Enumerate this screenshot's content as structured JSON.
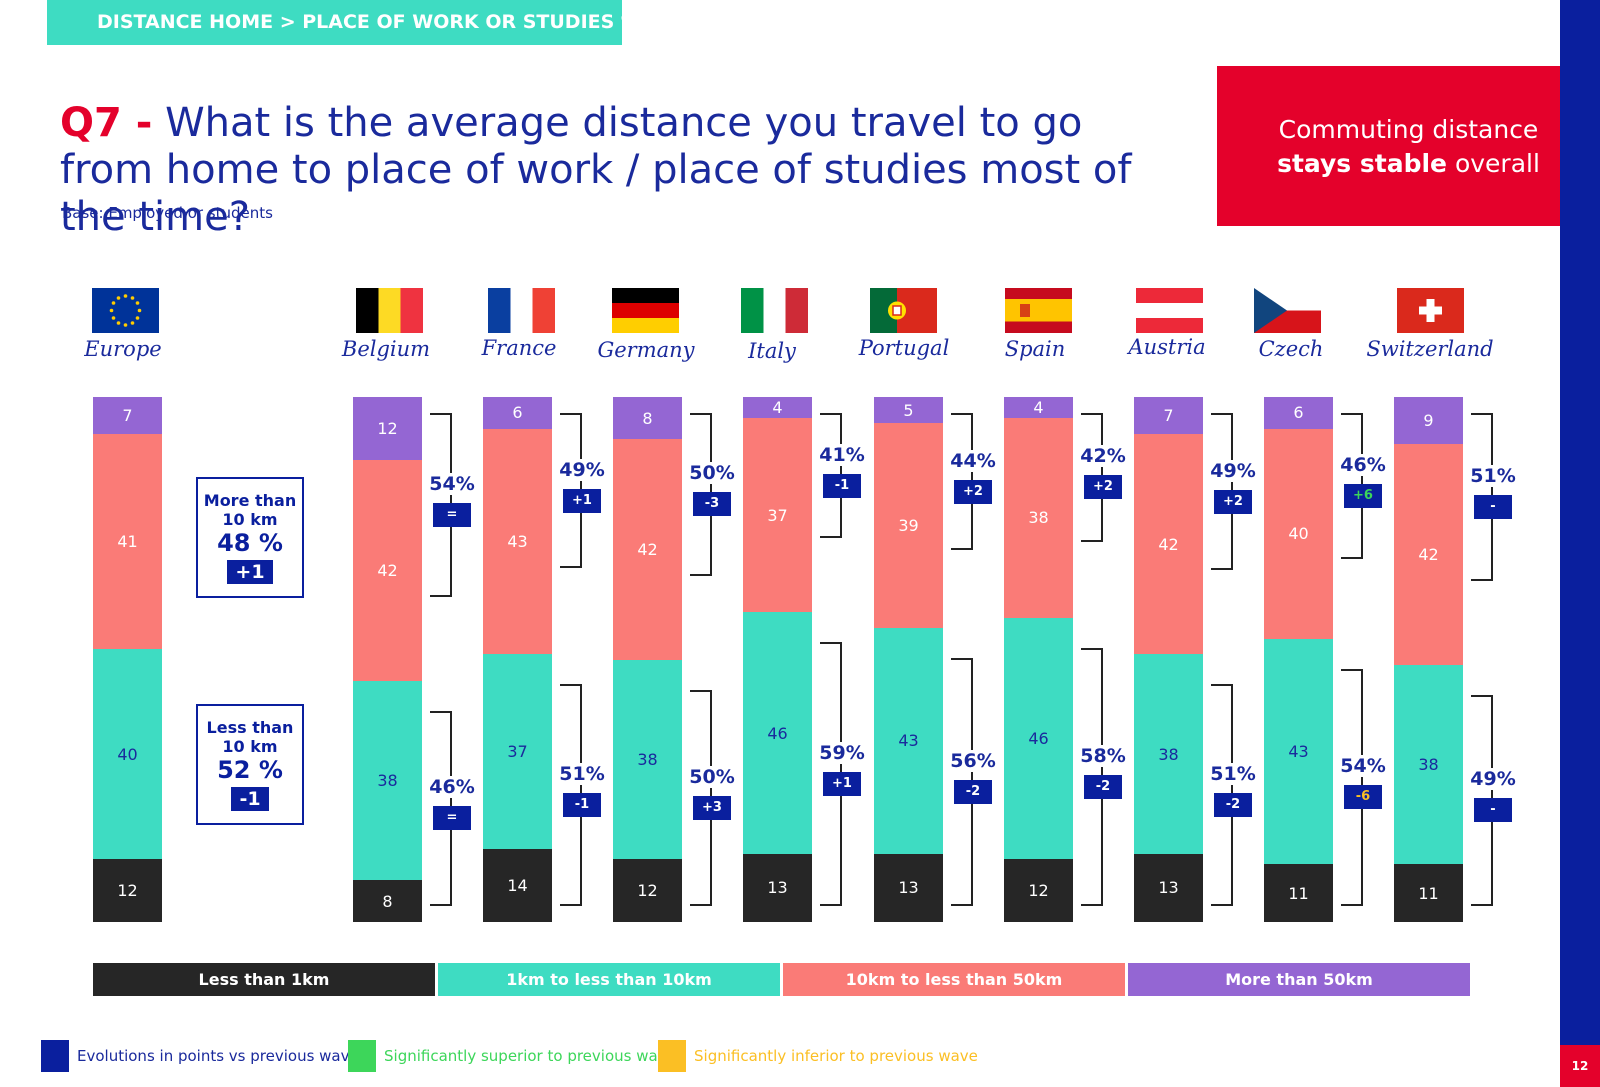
{
  "header": {
    "section_tag": "DISTANCE HOME > PLACE OF WORK OR STUDIES %",
    "question_number": "Q7 -",
    "question_text": "What is the average distance you travel to go from home to place of work / place of studies most of the time?",
    "base": "Base: Employed or students",
    "callout_line1": "Commuting distance",
    "callout_bold": "stays stable",
    "callout_rest": " overall",
    "page_number": "12"
  },
  "summary": {
    "more": {
      "label1": "More than",
      "label2": "10 km",
      "value": "48 %",
      "change": "+1"
    },
    "less": {
      "label1": "Less than",
      "label2": "10 km",
      "value": "52 %",
      "change": "-1"
    }
  },
  "colors": {
    "lt1": "#262626",
    "k1to10": "#3edcc2",
    "k10to50": "#fa7b77",
    "gt50": "#9466d3",
    "navy": "#0a1f9e",
    "red": "#e4012b",
    "sig_up": "#3dd65a",
    "sig_down": "#fbbf24"
  },
  "chart_data": {
    "type": "bar",
    "stacked": true,
    "orientation": "vertical",
    "categories": [
      "Europe",
      "Belgium",
      "France",
      "Germany",
      "Italy",
      "Portugal",
      "Spain",
      "Austria",
      "Czech",
      "Switzerland"
    ],
    "series": [
      {
        "name": "Less than 1km",
        "values": [
          12,
          8,
          14,
          12,
          13,
          13,
          12,
          13,
          11,
          11
        ]
      },
      {
        "name": "1km to less than 10km",
        "values": [
          40,
          38,
          37,
          38,
          46,
          43,
          46,
          38,
          43,
          38
        ]
      },
      {
        "name": "10km to less than 50km",
        "values": [
          41,
          42,
          43,
          42,
          37,
          39,
          38,
          42,
          40,
          42
        ]
      },
      {
        "name": "More than 50km",
        "values": [
          7,
          12,
          6,
          8,
          4,
          5,
          4,
          7,
          6,
          9
        ]
      }
    ],
    "more_than_10km_pct": [
      "",
      "54%",
      "49%",
      "50%",
      "41%",
      "44%",
      "42%",
      "49%",
      "46%",
      "51%"
    ],
    "more_than_10km_change": [
      "",
      "=",
      "+1",
      "-3",
      "-1",
      "+2",
      "+2",
      "+2",
      "+6",
      "-"
    ],
    "less_than_10km_pct": [
      "",
      "46%",
      "51%",
      "50%",
      "59%",
      "56%",
      "58%",
      "51%",
      "54%",
      "49%"
    ],
    "less_than_10km_change": [
      "",
      "=",
      "-1",
      "+3",
      "+1",
      "-2",
      "-2",
      "-2",
      "-6",
      "-"
    ],
    "significance_more": [
      "",
      "none",
      "none",
      "none",
      "none",
      "none",
      "none",
      "none",
      "up",
      "none"
    ],
    "significance_less": [
      "",
      "none",
      "none",
      "none",
      "none",
      "none",
      "none",
      "none",
      "down",
      "none"
    ]
  },
  "legend": {
    "bars": [
      "Less than 1km",
      "1km to less than 10km",
      "10km to less than 50km",
      "More than 50km"
    ],
    "keys": [
      "Evolutions in points vs previous wave",
      "Significantly superior to previous wave",
      "Significantly inferior to previous wave"
    ]
  }
}
